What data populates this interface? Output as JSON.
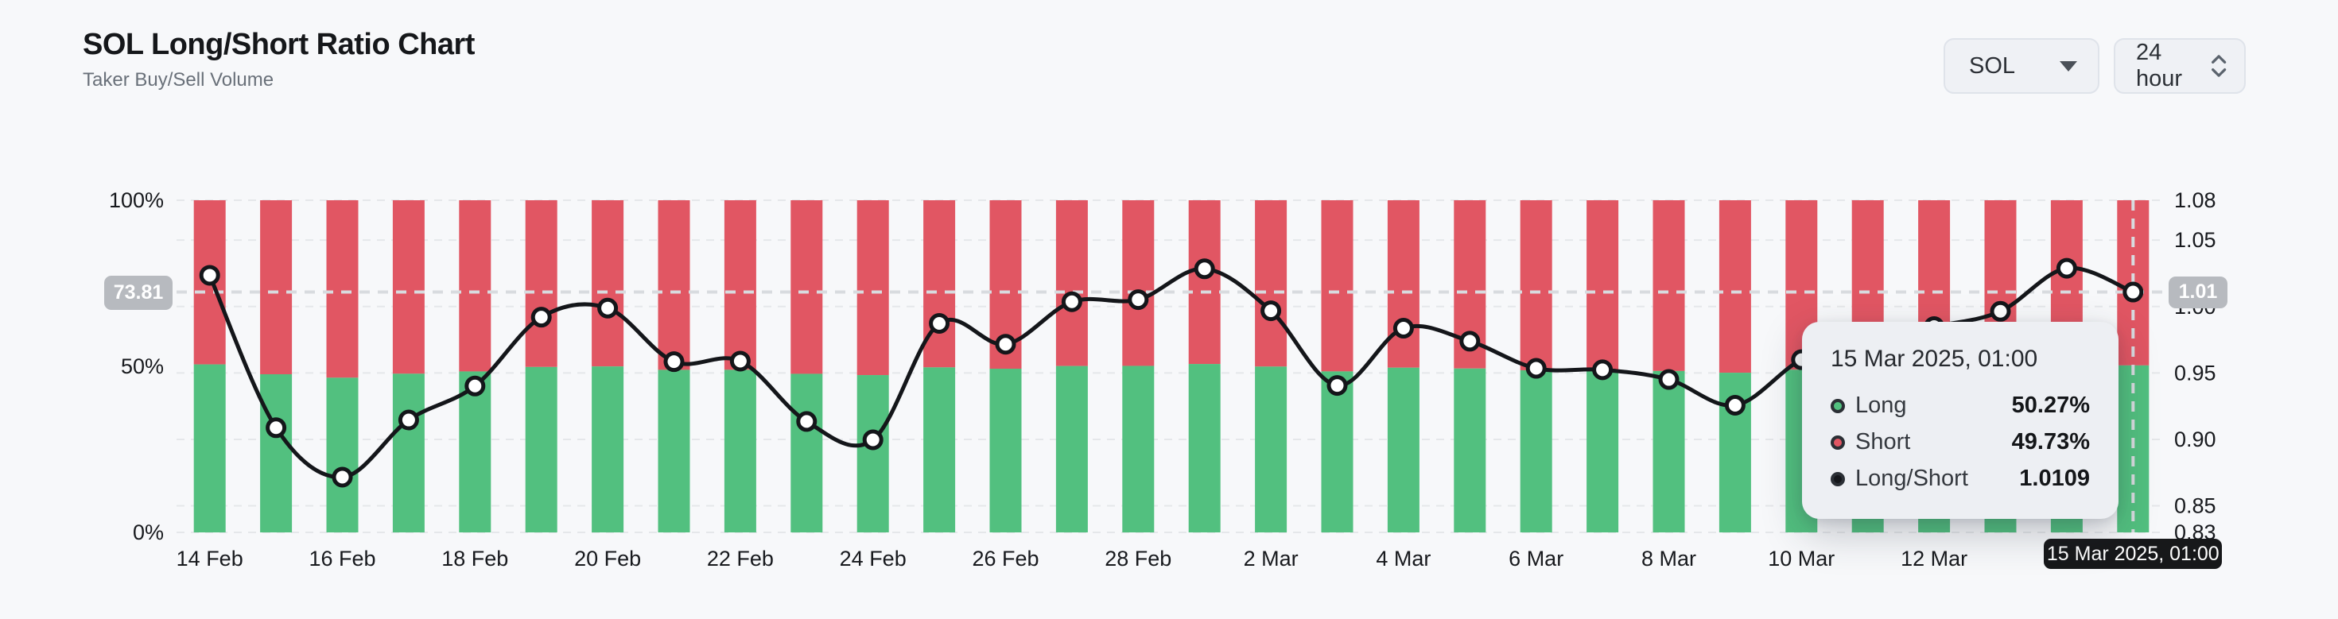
{
  "header": {
    "title": "SOL Long/Short Ratio Chart",
    "subtitle": "Taker Buy/Sell Volume"
  },
  "controls": {
    "symbol_select": {
      "value": "SOL"
    },
    "interval_select": {
      "value": "24 hour"
    }
  },
  "chart_data": {
    "type": "bar+line",
    "title": "SOL Long/Short Ratio Chart",
    "categories": [
      "14 Feb",
      "15 Feb",
      "16 Feb",
      "17 Feb",
      "18 Feb",
      "19 Feb",
      "20 Feb",
      "21 Feb",
      "22 Feb",
      "23 Feb",
      "24 Feb",
      "25 Feb",
      "26 Feb",
      "27 Feb",
      "28 Feb",
      "1 Mar",
      "2 Mar",
      "3 Mar",
      "4 Mar",
      "5 Mar",
      "6 Mar",
      "7 Mar",
      "8 Mar",
      "9 Mar",
      "10 Mar",
      "11 Mar",
      "12 Mar",
      "13 Mar",
      "14 Mar",
      "15 Mar"
    ],
    "series": [
      {
        "name": "Long",
        "unit": "%",
        "axis": "left",
        "values": [
          50.58,
          47.61,
          46.57,
          47.77,
          48.46,
          49.8,
          49.97,
          48.94,
          48.95,
          47.74,
          47.36,
          49.68,
          49.28,
          50.09,
          50.13,
          50.7,
          49.92,
          48.47,
          49.59,
          49.34,
          48.81,
          48.78,
          48.59,
          48.07,
          48.98,
          49.37,
          49.62,
          49.91,
          50.71,
          50.27
        ]
      },
      {
        "name": "Short",
        "unit": "%",
        "axis": "left",
        "values": [
          49.42,
          52.39,
          53.43,
          52.23,
          51.54,
          50.2,
          50.03,
          51.06,
          51.05,
          52.26,
          52.64,
          50.32,
          50.72,
          49.91,
          49.87,
          49.3,
          50.08,
          51.53,
          50.41,
          50.66,
          51.19,
          51.22,
          51.41,
          51.93,
          51.02,
          50.63,
          50.38,
          50.09,
          49.29,
          49.73
        ]
      },
      {
        "name": "Long/Short",
        "axis": "right",
        "values": [
          1.0235,
          0.9088,
          0.8716,
          0.9146,
          0.9402,
          0.992,
          0.9988,
          0.9585,
          0.9589,
          0.9135,
          0.8997,
          0.9873,
          0.9716,
          1.0036,
          1.0052,
          1.0284,
          0.9968,
          0.9406,
          0.9837,
          0.9739,
          0.9535,
          0.9524,
          0.9451,
          0.9257,
          0.96,
          0.9751,
          0.9849,
          0.9964,
          1.0288,
          1.0109
        ]
      }
    ],
    "left_axis": {
      "tick_labels": [
        "100%",
        "50%",
        "0%"
      ],
      "tick_values": [
        100,
        50,
        0
      ],
      "range": [
        0,
        100
      ]
    },
    "right_axis": {
      "tick_labels": [
        "1.08",
        "1.05",
        "1.00",
        "0.95",
        "0.90",
        "0.85",
        "0.83"
      ],
      "tick_values": [
        1.08,
        1.05,
        1.0,
        0.95,
        0.9,
        0.85,
        0.83
      ],
      "range": [
        0.83,
        1.08
      ]
    },
    "x_ticks": [
      {
        "i": 0,
        "label": "14 Feb"
      },
      {
        "i": 2,
        "label": "16 Feb"
      },
      {
        "i": 4,
        "label": "18 Feb"
      },
      {
        "i": 6,
        "label": "20 Feb"
      },
      {
        "i": 8,
        "label": "22 Feb"
      },
      {
        "i": 10,
        "label": "24 Feb"
      },
      {
        "i": 12,
        "label": "26 Feb"
      },
      {
        "i": 14,
        "label": "28 Feb"
      },
      {
        "i": 16,
        "label": "2 Mar"
      },
      {
        "i": 18,
        "label": "4 Mar"
      },
      {
        "i": 20,
        "label": "6 Mar"
      },
      {
        "i": 22,
        "label": "8 Mar"
      },
      {
        "i": 24,
        "label": "10 Mar"
      },
      {
        "i": 26,
        "label": "12 Mar"
      }
    ],
    "grid": "dashed",
    "legend_position": "none",
    "current": {
      "ratio": 1.0109,
      "left_axis_label": "73.81",
      "right_axis_label": "1.01",
      "date_label": "15 Mar 2025, 01:00"
    }
  },
  "tooltip": {
    "title": "15 Mar 2025, 01:00",
    "rows": [
      {
        "label": "Long",
        "value": "50.27%",
        "color_key": "long_green"
      },
      {
        "label": "Short",
        "value": "49.73%",
        "color_key": "short_red"
      },
      {
        "label": "Long/Short",
        "value": "1.0109",
        "color_key": "ratio_line"
      }
    ]
  },
  "colors": {
    "long_green": "#52c07f",
    "short_red": "#e15663",
    "ratio_line": "#14161a",
    "marker_fill": "#ffffff",
    "grid": "#e5e7ea",
    "crosshair": "#d8dbdf",
    "axis_text": "#17191d",
    "pill_gray": "#b7babf",
    "pill_black": "#17181a",
    "tooltip_bg": "#edeff3",
    "page_bg": "#f7f8fa"
  }
}
